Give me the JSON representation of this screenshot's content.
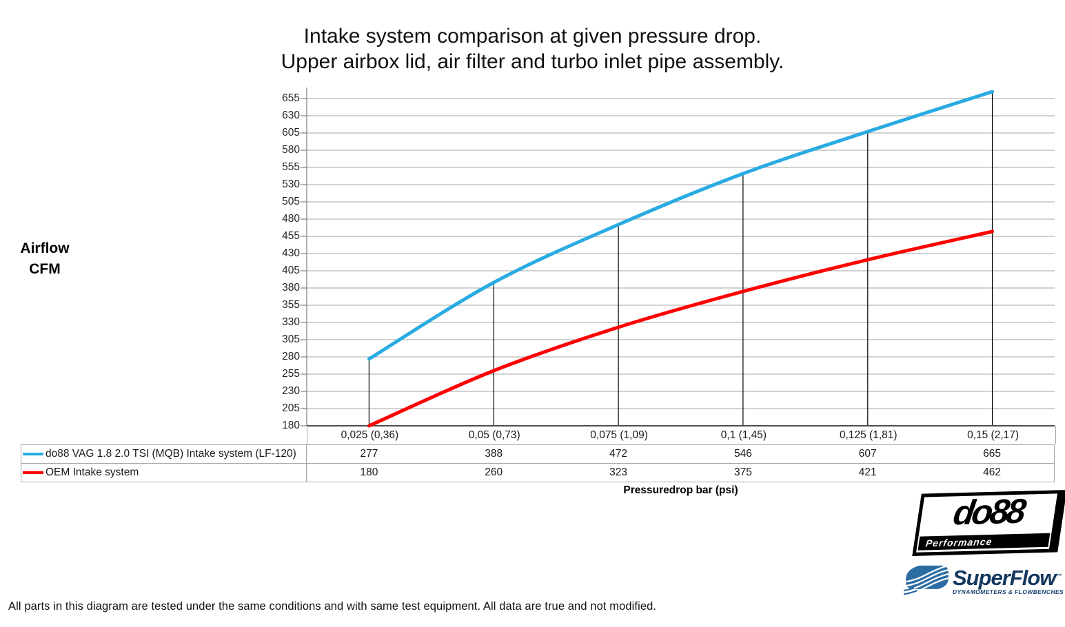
{
  "title": {
    "line1": "Intake system comparison at given pressure drop.",
    "line2": "Upper airbox lid, air filter and turbo inlet pipe assembly."
  },
  "y_axis": {
    "title_line1": "Airflow",
    "title_line2": "CFM"
  },
  "x_axis": {
    "title": "Pressuredrop bar (psi)"
  },
  "chart_data": {
    "type": "line",
    "categories": [
      "0,025 (0,36)",
      "0,05 (0,73)",
      "0,075 (1,09)",
      "0,1 (1,45)",
      "0,125 (1,81)",
      "0,15 (2,17)"
    ],
    "series": [
      {
        "name": "do88 VAG 1.8 2.0 TSI (MQB) Intake system (LF-120)",
        "color": "#29abe2",
        "values": [
          277,
          388,
          472,
          546,
          607,
          665
        ]
      },
      {
        "name": "OEM Intake system",
        "color": "#fe0000",
        "values": [
          180,
          260,
          323,
          375,
          421,
          462
        ]
      }
    ],
    "title": "Intake system comparison at given pressure drop. Upper airbox lid, air filter and turbo inlet pipe assembly.",
    "xlabel": "Pressuredrop bar (psi)",
    "ylabel": "Airflow CFM",
    "ylim": [
      180,
      655
    ],
    "ytick_step": 25,
    "grid": true,
    "legend_position": "table-left"
  },
  "footer": {
    "disclaimer": "All parts in this diagram are tested under the same conditions and with same test equipment. All data are true and not modified."
  },
  "logos": {
    "do88": {
      "text": "do88",
      "subtext": "Performance"
    },
    "superflow": {
      "text": "SuperFlow",
      "trademark": "™",
      "subtext": "DYNAMOMETERS & FLOWBENCHES"
    }
  },
  "colors": {
    "blue_series": "#29abe2",
    "red_series": "#fe0000",
    "gridline": "#a6a6a6",
    "tick": "#808080",
    "y_axis_line": "#808080",
    "x_axis_line": "#4d4d4d",
    "drop_line": "#000000",
    "table_border": "#a6a6a6",
    "text": "#1a1a1a"
  }
}
